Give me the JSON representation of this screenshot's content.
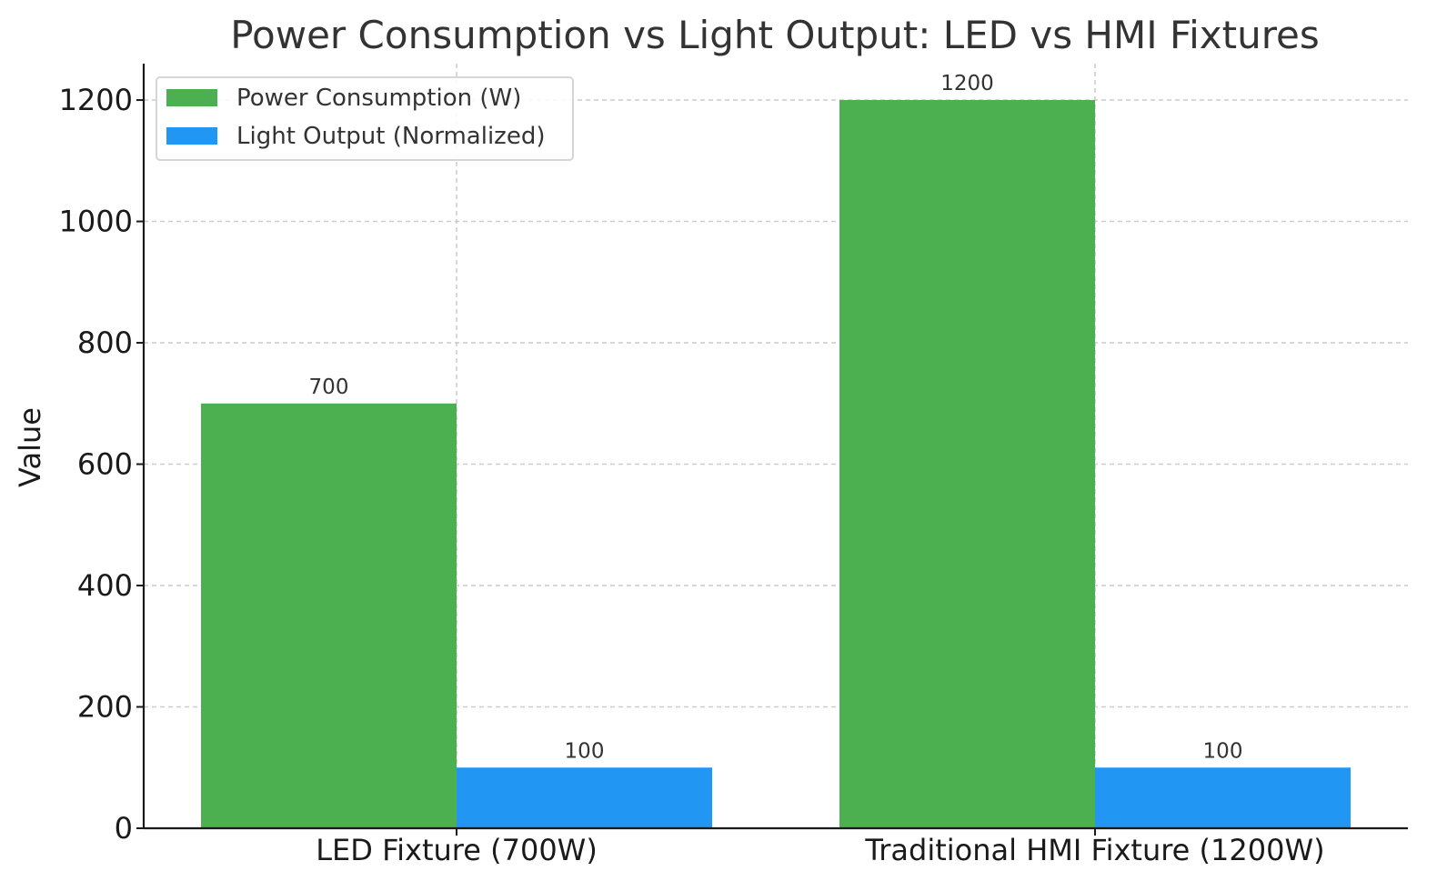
{
  "chart_data": {
    "type": "bar",
    "title": "Power Consumption vs Light Output: LED vs HMI Fixtures",
    "xlabel": "",
    "ylabel": "Value",
    "categories": [
      "LED Fixture (700W)",
      "Traditional HMI Fixture (1200W)"
    ],
    "series": [
      {
        "name": "Power Consumption (W)",
        "values": [
          700,
          1200
        ],
        "color": "#4caf50"
      },
      {
        "name": "Light Output (Normalized)",
        "values": [
          100,
          100
        ],
        "color": "#2196f3"
      }
    ],
    "ylim": [
      0,
      1260
    ],
    "yticks": [
      0,
      200,
      400,
      600,
      800,
      1000,
      1200
    ],
    "grid": true,
    "legend_position": "top-left",
    "data_labels": true
  }
}
